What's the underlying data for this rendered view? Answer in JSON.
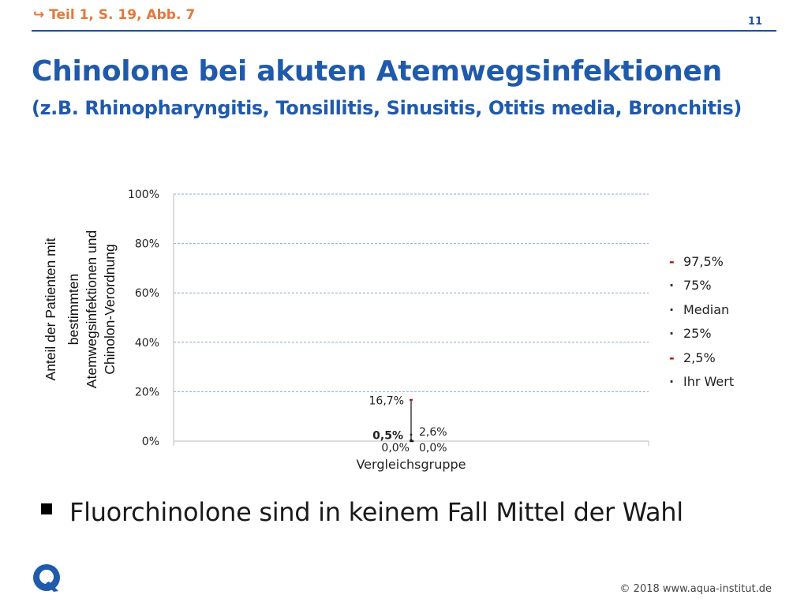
{
  "header": {
    "reference": "↪ Teil 1, S. 19, Abb. 7",
    "page_number": "11"
  },
  "title": "Chinolone bei akuten Atemwegsinfektionen",
  "subtitle": "(z.B. Rhinopharyngitis, Tonsillitis, Sinusitis, Otitis media, Bronchitis)",
  "bullet": "Fluorchinolone sind in keinem Fall Mittel der Wahl",
  "footer": {
    "copyright": "© 2018 www.aqua-institut.de",
    "logo_letter": "Q"
  },
  "colors": {
    "title": "#1f5aab",
    "red_marker": "#c00000",
    "dark_marker": "#333333",
    "grid": "#8fa9cf"
  },
  "chart_data": {
    "type": "boxplot",
    "categories": [
      "Vergleichsgruppe"
    ],
    "ylabel": "Anteil der Patienten mit bestimmten Atemwegsinfektionen und Chinolon-Verordnung",
    "ylabel_lines": [
      "Anteil der Patienten mit",
      "bestimmten",
      "Atemwegsinfektionen und",
      "Chinolon-Verordnung"
    ],
    "yticks": [
      "0%",
      "20%",
      "40%",
      "60%",
      "80%",
      "100%"
    ],
    "ylim": [
      0,
      100
    ],
    "grid": true,
    "legend_placement": "right",
    "stats": {
      "p97_5": 16.7,
      "p75": 2.6,
      "median": 0.0,
      "p25": 0.0,
      "p2_5": 0.0,
      "ihr_wert": 0.5
    },
    "labels": {
      "p97_5": "16,7%",
      "p75": "2,6%",
      "median": "0,0%",
      "p25": "0,0%",
      "ihr_wert": "0,5%"
    },
    "legend": [
      {
        "name": "97,5%",
        "mark": "-",
        "color": "#c00000"
      },
      {
        "name": "75%",
        "mark": "·",
        "color": "#333333"
      },
      {
        "name": "Median",
        "mark": "·",
        "color": "#333333"
      },
      {
        "name": "25%",
        "mark": "·",
        "color": "#333333"
      },
      {
        "name": "2,5%",
        "mark": "-",
        "color": "#c00000"
      },
      {
        "name": "Ihr Wert",
        "mark": "·",
        "color": "#333333"
      }
    ]
  }
}
